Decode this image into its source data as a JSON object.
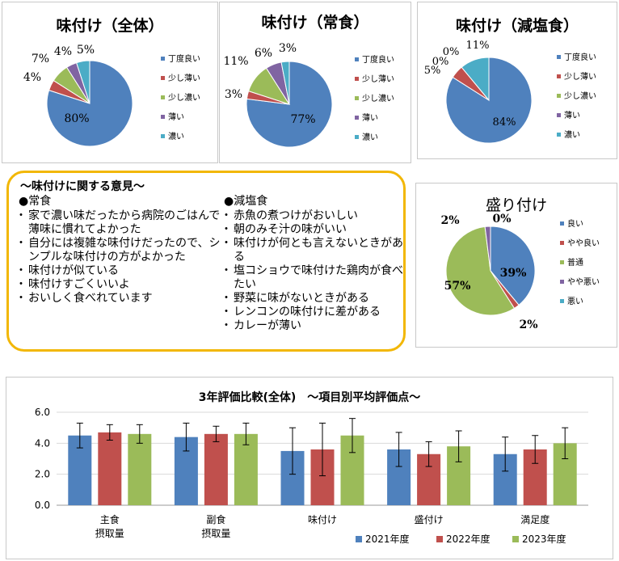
{
  "pies": [
    {
      "id": "pie-overall",
      "title": "味付け（全体）",
      "chart_data": {
        "type": "pie",
        "labels": [
          "丁度良い",
          "少し薄い",
          "少し濃い",
          "薄い",
          "濃い"
        ],
        "values": [
          80,
          4,
          7,
          4,
          5
        ],
        "value_labels": [
          "80%",
          "4%",
          "7%",
          "4%",
          "5%"
        ]
      }
    },
    {
      "id": "pie-regular",
      "title": "味付け（常食）",
      "chart_data": {
        "type": "pie",
        "labels": [
          "丁度良い",
          "少し薄い",
          "少し濃い",
          "薄い",
          "濃い"
        ],
        "values": [
          77,
          3,
          11,
          6,
          3
        ],
        "value_labels": [
          "77%",
          "3%",
          "11%",
          "6%",
          "3%"
        ]
      }
    },
    {
      "id": "pie-lowsalt",
      "title": "味付け（減塩食）",
      "chart_data": {
        "type": "pie",
        "labels": [
          "丁度良い",
          "少し薄い",
          "少し濃い",
          "薄い",
          "濃い"
        ],
        "values": [
          84,
          5,
          0,
          0,
          11
        ],
        "value_labels": [
          "84%",
          "5%",
          "0%",
          "0%",
          "11%"
        ]
      }
    },
    {
      "id": "pie-plating",
      "title": "盛り付け",
      "chart_data": {
        "type": "pie",
        "labels": [
          "良い",
          "やや良い",
          "普通",
          "やや悪い",
          "悪い"
        ],
        "values": [
          39,
          2,
          57,
          2,
          0
        ],
        "value_labels": [
          "39%",
          "2%",
          "57%",
          "2%",
          "0%"
        ]
      }
    }
  ],
  "colors": [
    "#4f81bd",
    "#c0504d",
    "#9bbb59",
    "#8064a2",
    "#4bacc6"
  ],
  "opinions": {
    "title": "～味付けに関する意見～",
    "regular": {
      "heading": "●常食",
      "items": [
        "家で濃い味だったから病院のごはんで薄味に慣れてよかった",
        "自分には複雑な味付けだったので、シンプルな味付けの方がよかった",
        "味付けが似ている",
        "味付けすごくいいよ",
        "おいしく食べれています"
      ]
    },
    "lowsalt": {
      "heading": "●減塩食",
      "items": [
        "赤魚の煮つけがおいしい",
        "朝のみそ汁の味がいい",
        "味付けが何とも言えないときがある",
        "塩コショウで味付けた鶏肉が食べたい",
        "野菜に味がないときがある",
        "レンコンの味付けに差がある",
        "カレーが薄い"
      ]
    }
  },
  "bar": {
    "chart_data": {
      "type": "bar",
      "title": "3年評価比較(全体)　～項目別平均評価点～",
      "categories": [
        "主食\n摂取量",
        "副食\n摂取量",
        "味付け",
        "盛付け",
        "満足度"
      ],
      "series": [
        {
          "name": "2021年度",
          "values": [
            4.5,
            4.4,
            3.5,
            3.6,
            3.3
          ],
          "error": [
            0.8,
            0.9,
            1.5,
            1.1,
            1.1
          ]
        },
        {
          "name": "2022年度",
          "values": [
            4.7,
            4.6,
            3.6,
            3.3,
            3.6
          ],
          "error": [
            0.5,
            0.5,
            1.7,
            0.8,
            0.9
          ]
        },
        {
          "name": "2023年度",
          "values": [
            4.6,
            4.6,
            4.5,
            3.8,
            4.0
          ],
          "error": [
            0.6,
            0.7,
            1.1,
            1.0,
            1.0
          ]
        }
      ],
      "yticks": [
        "0.0",
        "2.0",
        "4.0",
        "6.0"
      ],
      "ylim": [
        0,
        6
      ],
      "grid": true,
      "legend": "bottom-right"
    }
  }
}
